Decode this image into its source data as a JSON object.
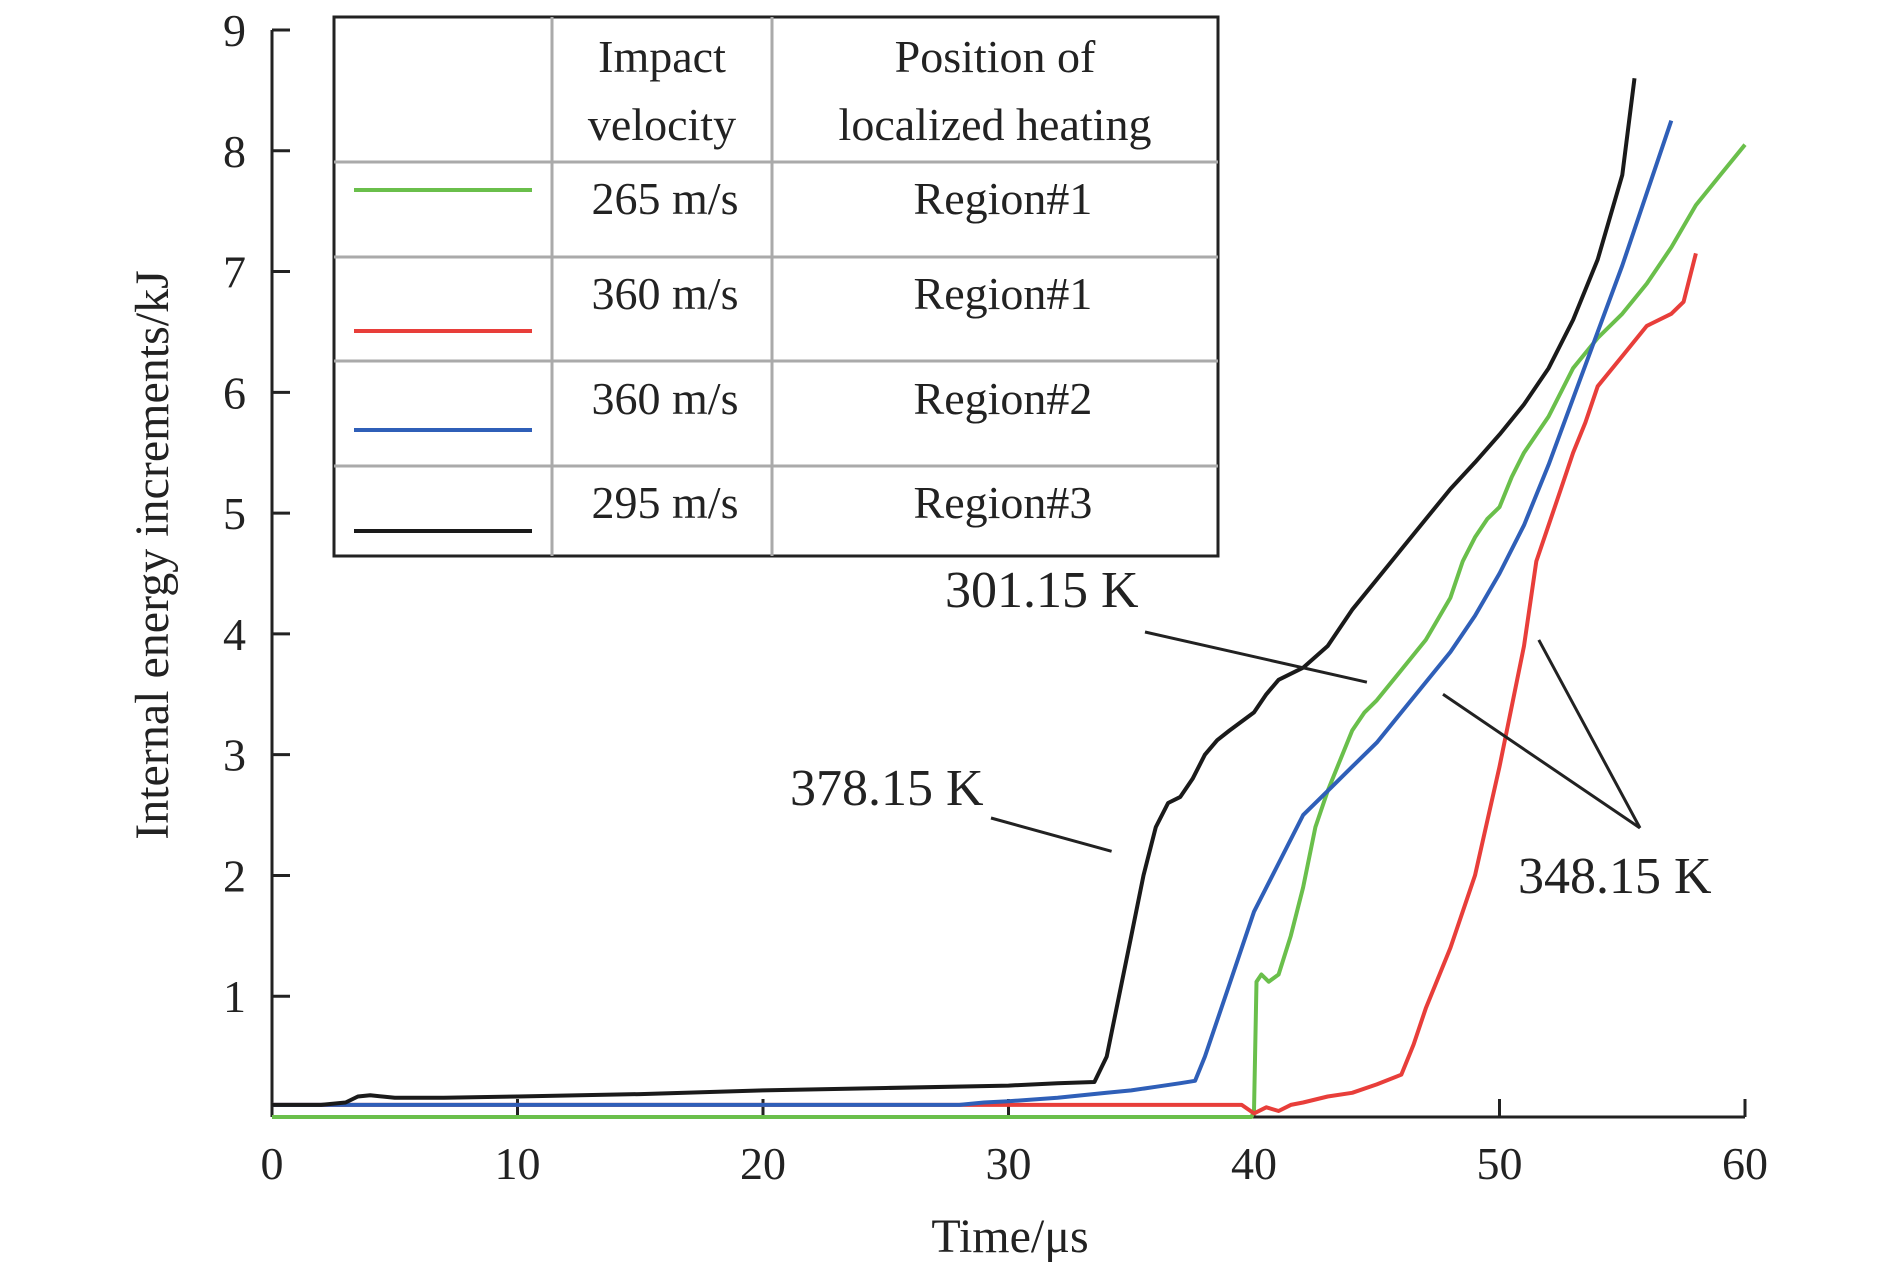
{
  "chart_data": {
    "type": "line",
    "xlabel": "Time/μs",
    "ylabel": "Internal energy increments/kJ",
    "xlim": [
      0,
      60
    ],
    "ylim": [
      0,
      9
    ],
    "xticks": [
      0,
      10,
      20,
      30,
      40,
      50,
      60
    ],
    "yticks": [
      1,
      2,
      3,
      4,
      5,
      6,
      7,
      8,
      9
    ],
    "grid": false,
    "legend": {
      "placement": "top-left",
      "headers": [
        "Impact velocity",
        "Position of localized heating"
      ],
      "header_lines": [
        [
          "Impact",
          "velocity"
        ],
        [
          "Position of",
          "localized heating"
        ]
      ],
      "rows": [
        {
          "velocity": "265 m/s",
          "region": "Region#1"
        },
        {
          "velocity": "360 m/s",
          "region": "Region#1"
        },
        {
          "velocity": "360 m/s",
          "region": "Region#2"
        },
        {
          "velocity": "295 m/s",
          "region": "Region#3"
        }
      ]
    },
    "series": [
      {
        "color": "#6abf4b",
        "values": [
          [
            0,
            0.0
          ],
          [
            10,
            0.0
          ],
          [
            20,
            0.0
          ],
          [
            30,
            0.0
          ],
          [
            39.9,
            0.0
          ],
          [
            40.0,
            0.05
          ],
          [
            40.1,
            1.12
          ],
          [
            40.3,
            1.18
          ],
          [
            40.6,
            1.12
          ],
          [
            41.0,
            1.18
          ],
          [
            41.5,
            1.5
          ],
          [
            42.0,
            1.9
          ],
          [
            42.5,
            2.4
          ],
          [
            43.0,
            2.7
          ],
          [
            43.5,
            2.95
          ],
          [
            44.0,
            3.2
          ],
          [
            44.5,
            3.35
          ],
          [
            45.0,
            3.45
          ],
          [
            46.0,
            3.7
          ],
          [
            47.0,
            3.95
          ],
          [
            48.0,
            4.3
          ],
          [
            48.5,
            4.6
          ],
          [
            49.0,
            4.8
          ],
          [
            49.5,
            4.95
          ],
          [
            50.0,
            5.05
          ],
          [
            50.5,
            5.3
          ],
          [
            51.0,
            5.5
          ],
          [
            52.0,
            5.8
          ],
          [
            53.0,
            6.2
          ],
          [
            54.0,
            6.45
          ],
          [
            55.0,
            6.65
          ],
          [
            56.0,
            6.9
          ],
          [
            57.0,
            7.2
          ],
          [
            58.0,
            7.55
          ],
          [
            59.0,
            7.8
          ],
          [
            60.0,
            8.05
          ]
        ]
      },
      {
        "color": "#e83e3a",
        "values": [
          [
            0,
            0.1
          ],
          [
            10,
            0.1
          ],
          [
            20,
            0.1
          ],
          [
            30,
            0.1
          ],
          [
            38,
            0.1
          ],
          [
            39.5,
            0.1
          ],
          [
            40.0,
            0.03
          ],
          [
            40.5,
            0.08
          ],
          [
            41.0,
            0.05
          ],
          [
            41.5,
            0.1
          ],
          [
            42.0,
            0.12
          ],
          [
            43.0,
            0.17
          ],
          [
            44.0,
            0.2
          ],
          [
            45.0,
            0.27
          ],
          [
            46.0,
            0.35
          ],
          [
            46.5,
            0.6
          ],
          [
            47.0,
            0.9
          ],
          [
            48.0,
            1.4
          ],
          [
            49.0,
            2.0
          ],
          [
            50.0,
            2.9
          ],
          [
            51.0,
            3.9
          ],
          [
            51.5,
            4.6
          ],
          [
            52.0,
            4.9
          ],
          [
            52.5,
            5.2
          ],
          [
            53.0,
            5.5
          ],
          [
            53.5,
            5.75
          ],
          [
            54.0,
            6.05
          ],
          [
            55.0,
            6.3
          ],
          [
            56.0,
            6.55
          ],
          [
            57.0,
            6.65
          ],
          [
            57.5,
            6.75
          ],
          [
            58.0,
            7.15
          ]
        ]
      },
      {
        "color": "#2f5fb8",
        "values": [
          [
            0,
            0.1
          ],
          [
            10,
            0.1
          ],
          [
            20,
            0.1
          ],
          [
            28,
            0.1
          ],
          [
            29,
            0.12
          ],
          [
            30,
            0.13
          ],
          [
            32,
            0.16
          ],
          [
            34,
            0.2
          ],
          [
            35,
            0.22
          ],
          [
            36,
            0.25
          ],
          [
            37,
            0.28
          ],
          [
            37.6,
            0.3
          ],
          [
            38.0,
            0.5
          ],
          [
            38.5,
            0.8
          ],
          [
            39.0,
            1.1
          ],
          [
            40.0,
            1.7
          ],
          [
            41.0,
            2.1
          ],
          [
            42.0,
            2.5
          ],
          [
            43.0,
            2.7
          ],
          [
            44.0,
            2.9
          ],
          [
            45.0,
            3.1
          ],
          [
            46.0,
            3.35
          ],
          [
            47.0,
            3.6
          ],
          [
            48.0,
            3.85
          ],
          [
            49.0,
            4.15
          ],
          [
            50.0,
            4.5
          ],
          [
            51.0,
            4.9
          ],
          [
            52.0,
            5.4
          ],
          [
            53.0,
            5.95
          ],
          [
            54.0,
            6.5
          ],
          [
            55.0,
            7.05
          ],
          [
            56.0,
            7.65
          ],
          [
            57.0,
            8.25
          ]
        ]
      },
      {
        "color": "#1a1a1a",
        "values": [
          [
            0,
            0.1
          ],
          [
            1,
            0.1
          ],
          [
            2,
            0.1
          ],
          [
            3,
            0.12
          ],
          [
            3.5,
            0.17
          ],
          [
            4,
            0.18
          ],
          [
            5,
            0.16
          ],
          [
            7,
            0.16
          ],
          [
            10,
            0.17
          ],
          [
            15,
            0.19
          ],
          [
            20,
            0.22
          ],
          [
            25,
            0.24
          ],
          [
            30,
            0.26
          ],
          [
            32,
            0.28
          ],
          [
            33.5,
            0.29
          ],
          [
            34.0,
            0.5
          ],
          [
            34.5,
            1.0
          ],
          [
            35.0,
            1.5
          ],
          [
            35.5,
            2.0
          ],
          [
            36.0,
            2.4
          ],
          [
            36.5,
            2.6
          ],
          [
            37.0,
            2.65
          ],
          [
            37.5,
            2.8
          ],
          [
            38.0,
            3.0
          ],
          [
            38.5,
            3.12
          ],
          [
            39.0,
            3.2
          ],
          [
            40.0,
            3.35
          ],
          [
            40.5,
            3.5
          ],
          [
            41.0,
            3.62
          ],
          [
            42.0,
            3.72
          ],
          [
            43.0,
            3.9
          ],
          [
            44.0,
            4.2
          ],
          [
            45.0,
            4.45
          ],
          [
            46.0,
            4.7
          ],
          [
            47.0,
            4.95
          ],
          [
            48.0,
            5.2
          ],
          [
            49.0,
            5.42
          ],
          [
            50.0,
            5.65
          ],
          [
            51.0,
            5.9
          ],
          [
            52.0,
            6.2
          ],
          [
            53.0,
            6.6
          ],
          [
            54.0,
            7.1
          ],
          [
            55.0,
            7.8
          ],
          [
            55.5,
            8.6
          ]
        ]
      }
    ],
    "annotations": [
      {
        "text": "378.15 K",
        "anchor": [
          34.2,
          2.2
        ]
      },
      {
        "text": "301.15 K",
        "anchor": [
          44.6,
          3.6
        ]
      },
      {
        "text": "348.15 K",
        "anchor": [
          47.7,
          3.5
        ]
      },
      {
        "text": "348.15 K",
        "anchor": [
          51.6,
          3.95
        ]
      }
    ],
    "annotation_labels": [
      "378.15 K",
      "301.15 K",
      "348.15 K"
    ]
  }
}
